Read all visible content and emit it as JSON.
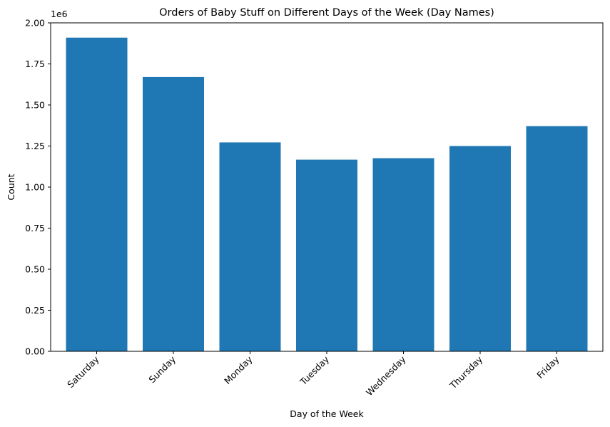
{
  "chart_data": {
    "type": "bar",
    "title": "Orders of Baby Stuff on Different Days of the Week (Day Names)",
    "xlabel": "Day of the Week",
    "ylabel": "Count",
    "y_offset_label": "1e6",
    "y_scale": 1000000,
    "categories": [
      "Saturday",
      "Sunday",
      "Monday",
      "Tuesday",
      "Wednesday",
      "Thursday",
      "Friday"
    ],
    "values": [
      1910000,
      1670000,
      1272000,
      1167000,
      1176000,
      1250000,
      1371000
    ],
    "ylim": [
      0,
      2000000
    ],
    "y_ticks": [
      "0.00",
      "0.25",
      "0.50",
      "0.75",
      "1.00",
      "1.25",
      "1.50",
      "1.75",
      "2.00"
    ],
    "bar_color": "#1f77b4",
    "x_tick_rotation": "45 degrees",
    "grid": false,
    "legend": "none"
  }
}
